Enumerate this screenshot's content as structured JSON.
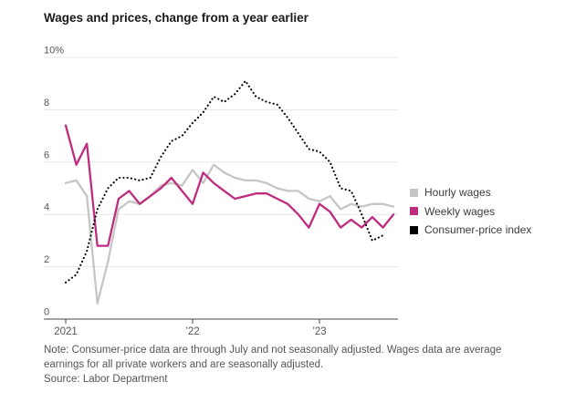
{
  "chart_data": {
    "type": "line",
    "title": "Wages and prices, change from a year earlier",
    "xlabel": "",
    "ylabel": "",
    "y_unit": "%",
    "ylim": [
      0,
      10
    ],
    "grid": "horizontal",
    "legend_position": "right",
    "x_frequency": "monthly",
    "x_start": "Jan 2021",
    "x_end_wages": "Aug 2023",
    "x_end_cpi": "Jul 2023",
    "y_ticks": [
      {
        "label": "10%",
        "value": 10
      },
      {
        "label": "8",
        "value": 8
      },
      {
        "label": "6",
        "value": 6
      },
      {
        "label": "4",
        "value": 4
      },
      {
        "label": "2",
        "value": 2
      },
      {
        "label": "0",
        "value": 0
      }
    ],
    "x_ticks": [
      {
        "label": "2021",
        "month_index": 0
      },
      {
        "label": "’22",
        "month_index": 12
      },
      {
        "label": "’23",
        "month_index": 24
      }
    ],
    "series": [
      {
        "name": "Hourly wages",
        "color": "#c6c6c6",
        "style": "solid",
        "start": "2021-01",
        "values": [
          5.2,
          5.3,
          4.7,
          0.6,
          2.2,
          4.2,
          4.5,
          4.4,
          4.7,
          5.1,
          5.2,
          5.1,
          5.7,
          5.2,
          5.9,
          5.6,
          5.4,
          5.3,
          5.3,
          5.2,
          5.0,
          4.9,
          4.9,
          4.6,
          4.5,
          4.7,
          4.2,
          4.4,
          4.3,
          4.4,
          4.4,
          4.3
        ]
      },
      {
        "name": "Weekly wages",
        "color": "#bf2c7f",
        "style": "solid",
        "start": "2021-01",
        "values": [
          7.4,
          5.9,
          6.7,
          2.8,
          2.8,
          4.6,
          4.9,
          4.4,
          4.7,
          5.0,
          5.4,
          4.9,
          4.4,
          5.6,
          5.2,
          4.9,
          4.6,
          4.7,
          4.8,
          4.8,
          4.6,
          4.4,
          4.0,
          3.5,
          4.4,
          4.1,
          3.5,
          3.8,
          3.5,
          3.9,
          3.5,
          4.0
        ]
      },
      {
        "name": "Consumer-price index",
        "color": "#000000",
        "style": "dotted",
        "start": "2021-01",
        "values": [
          1.4,
          1.7,
          2.6,
          4.2,
          5.0,
          5.4,
          5.4,
          5.3,
          5.4,
          6.2,
          6.8,
          7.0,
          7.5,
          7.9,
          8.5,
          8.3,
          8.6,
          9.1,
          8.5,
          8.3,
          8.2,
          7.7,
          7.1,
          6.5,
          6.4,
          6.0,
          5.0,
          4.9,
          4.0,
          3.0,
          3.2
        ]
      }
    ],
    "note": "Note: Consumer-price data are through July and not seasonally adjusted. Wages data are average earnings for all private workers and are seasonally adjusted.",
    "source": "Source: Labor Department"
  }
}
